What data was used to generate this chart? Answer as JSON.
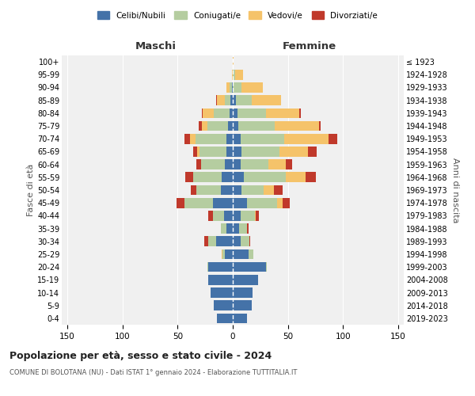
{
  "age_groups": [
    "0-4",
    "5-9",
    "10-14",
    "15-19",
    "20-24",
    "25-29",
    "30-34",
    "35-39",
    "40-44",
    "45-49",
    "50-54",
    "55-59",
    "60-64",
    "65-69",
    "70-74",
    "75-79",
    "80-84",
    "85-89",
    "90-94",
    "95-99",
    "100+"
  ],
  "birth_years": [
    "2019-2023",
    "2014-2018",
    "2009-2013",
    "2004-2008",
    "1999-2003",
    "1994-1998",
    "1989-1993",
    "1984-1988",
    "1979-1983",
    "1974-1978",
    "1969-1973",
    "1964-1968",
    "1959-1963",
    "1954-1958",
    "1949-1953",
    "1944-1948",
    "1939-1943",
    "1934-1938",
    "1929-1933",
    "1924-1928",
    "≤ 1923"
  ],
  "colors": {
    "celibi": "#4472a8",
    "coniugati": "#b5cda0",
    "vedovi": "#f5c36a",
    "divorziati": "#c0392b"
  },
  "maschi": {
    "celibi": [
      14,
      17,
      20,
      22,
      22,
      7,
      15,
      6,
      8,
      18,
      11,
      10,
      7,
      6,
      6,
      4,
      3,
      2,
      1,
      0,
      0
    ],
    "coniugati": [
      0,
      0,
      0,
      0,
      1,
      2,
      7,
      5,
      10,
      26,
      22,
      26,
      22,
      24,
      28,
      19,
      14,
      5,
      2,
      0,
      0
    ],
    "vedovi": [
      0,
      0,
      0,
      0,
      0,
      1,
      0,
      0,
      0,
      0,
      0,
      0,
      0,
      2,
      5,
      5,
      10,
      7,
      3,
      1,
      0
    ],
    "divorziati": [
      0,
      0,
      0,
      0,
      0,
      0,
      4,
      0,
      4,
      7,
      5,
      7,
      4,
      4,
      5,
      3,
      1,
      1,
      0,
      0,
      0
    ]
  },
  "femmine": {
    "celibi": [
      13,
      17,
      18,
      23,
      30,
      14,
      7,
      6,
      7,
      13,
      8,
      10,
      7,
      8,
      7,
      5,
      4,
      3,
      0,
      0,
      0
    ],
    "coniugati": [
      0,
      0,
      0,
      0,
      1,
      5,
      8,
      7,
      13,
      27,
      20,
      38,
      25,
      34,
      40,
      33,
      26,
      14,
      8,
      2,
      0
    ],
    "vedovi": [
      0,
      0,
      0,
      0,
      0,
      0,
      0,
      0,
      1,
      5,
      9,
      18,
      16,
      26,
      40,
      40,
      30,
      27,
      19,
      7,
      1
    ],
    "divorziati": [
      0,
      0,
      0,
      0,
      0,
      0,
      1,
      1,
      3,
      7,
      8,
      9,
      6,
      8,
      8,
      2,
      2,
      0,
      0,
      0,
      0
    ]
  },
  "title": "Popolazione per età, sesso e stato civile - 2024",
  "subtitle": "COMUNE DI BOLOTANA (NU) - Dati ISTAT 1° gennaio 2024 - Elaborazione TUTTITALIA.IT",
  "xlabel_left": "Maschi",
  "xlabel_right": "Femmine",
  "ylabel_left": "Fasce di età",
  "ylabel_right": "Anni di nascita",
  "xlim": 155,
  "bg_color": "#f0f0f0",
  "legend_labels": [
    "Celibi/Nubili",
    "Coniugati/e",
    "Vedovi/e",
    "Divorziati/e"
  ]
}
